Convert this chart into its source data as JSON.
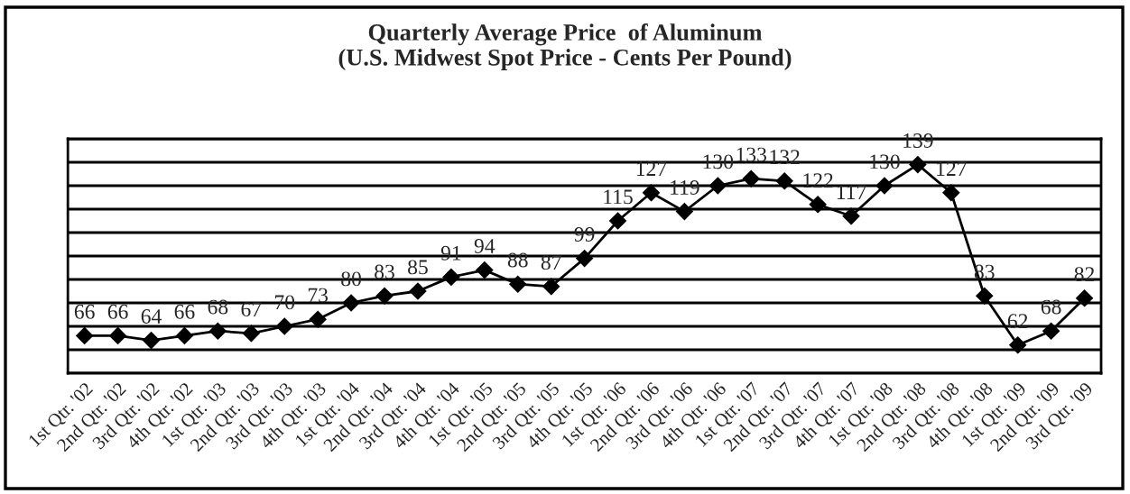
{
  "chart_data": {
    "type": "line",
    "title": "Quarterly Average Price  of Aluminum\n(U.S. Midwest Spot Price - Cents Per Pound)",
    "categories": [
      "1st Qtr. '02",
      "2nd Qtr. '02",
      "3rd Qtr. '02",
      "4th Qtr. '02",
      "1st Qtr. '03",
      "2nd Qtr. '03",
      "3rd Qtr. '03",
      "4th Qtr. '03",
      "1st Qtr. '04",
      "2nd Qtr. '04",
      "3rd Qtr. '04",
      "4th Qtr. '04",
      "1st Qtr. '05",
      "2nd Qtr. '05",
      "3rd Qtr. '05",
      "4th Qtr. '05",
      "1st Qtr. '06",
      "2nd Qtr. '06",
      "3rd Qtr. '06",
      "4th Qtr. '06",
      "1st Qtr. '07",
      "2nd Qtr. '07",
      "3rd Qtr. '07",
      "4th Qtr. '07",
      "1st Qtr. '08",
      "2nd Qtr. '08",
      "3rd Qtr. '08",
      "4th Qtr. '08",
      "1st Qtr. '09",
      "2nd Qtr. '09",
      "3rd Qtr. '09"
    ],
    "series": [
      {
        "color": "#000000",
        "values": [
          66,
          66,
          64,
          66,
          68,
          67,
          70,
          73,
          80,
          83,
          85,
          91,
          94,
          88,
          87,
          99,
          115,
          127,
          119,
          130,
          133,
          132,
          122,
          117,
          130,
          139,
          127,
          83,
          62,
          68,
          82
        ]
      }
    ],
    "ylim": [
      50,
      150
    ],
    "yticks": [
      {
        "value": 50,
        "label": null
      },
      {
        "value": 60,
        "label": null
      },
      {
        "value": 70,
        "label": null
      },
      {
        "value": 80,
        "label": null
      },
      {
        "value": 90,
        "label": null
      },
      {
        "value": 100,
        "label": null
      },
      {
        "value": 110,
        "label": null
      },
      {
        "value": 120,
        "label": null
      },
      {
        "value": 130,
        "label": null
      },
      {
        "value": 140,
        "label": null
      },
      {
        "value": 150,
        "label": null
      }
    ],
    "tick_labels": "x",
    "grid": "y",
    "marker": "diamond",
    "line_style": "solid",
    "data_labels": true,
    "legend": false
  }
}
